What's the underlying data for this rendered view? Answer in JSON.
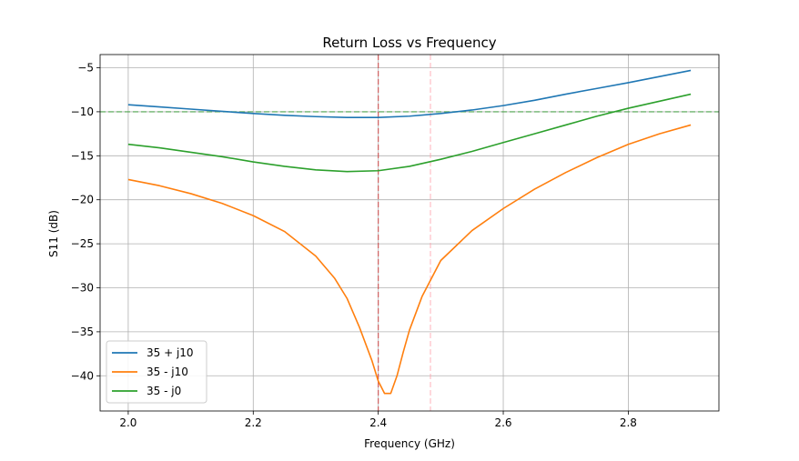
{
  "chart_data": {
    "type": "line",
    "title": "Return Loss vs Frequency",
    "xlabel": "Frequency (GHz)",
    "ylabel": "S11 (dB)",
    "xlim": [
      1.955,
      2.945
    ],
    "ylim": [
      -44,
      -3.5
    ],
    "xticks": [
      2.0,
      2.2,
      2.4,
      2.6,
      2.8
    ],
    "yticks": [
      -40,
      -35,
      -30,
      -25,
      -20,
      -15,
      -10,
      -5
    ],
    "grid": true,
    "legend_position": "lower-left",
    "series": [
      {
        "name": "35 + j10",
        "color": "#1f77b4",
        "x": [
          2.0,
          2.05,
          2.1,
          2.15,
          2.2,
          2.25,
          2.3,
          2.35,
          2.4,
          2.45,
          2.5,
          2.55,
          2.6,
          2.65,
          2.7,
          2.75,
          2.8,
          2.85,
          2.9
        ],
        "y": [
          -9.2,
          -9.45,
          -9.7,
          -9.95,
          -10.2,
          -10.4,
          -10.55,
          -10.65,
          -10.65,
          -10.5,
          -10.2,
          -9.8,
          -9.3,
          -8.7,
          -8.0,
          -7.35,
          -6.7,
          -6.0,
          -5.3
        ]
      },
      {
        "name": "35 - j10",
        "color": "#ff7f0e",
        "x": [
          2.0,
          2.05,
          2.1,
          2.15,
          2.2,
          2.25,
          2.3,
          2.33,
          2.35,
          2.37,
          2.39,
          2.4,
          2.41,
          2.42,
          2.43,
          2.44,
          2.45,
          2.47,
          2.5,
          2.55,
          2.6,
          2.65,
          2.7,
          2.75,
          2.8,
          2.85,
          2.9
        ],
        "y": [
          -17.7,
          -18.4,
          -19.3,
          -20.4,
          -21.8,
          -23.6,
          -26.4,
          -28.9,
          -31.2,
          -34.5,
          -38.3,
          -40.6,
          -42.0,
          -42.0,
          -40.0,
          -37.3,
          -34.8,
          -31.0,
          -26.9,
          -23.5,
          -21.0,
          -18.8,
          -16.9,
          -15.2,
          -13.7,
          -12.5,
          -11.5
        ]
      },
      {
        "name": "35 - j0",
        "color": "#2ca02c",
        "x": [
          2.0,
          2.05,
          2.1,
          2.15,
          2.2,
          2.25,
          2.3,
          2.35,
          2.4,
          2.45,
          2.5,
          2.55,
          2.6,
          2.65,
          2.7,
          2.75,
          2.8,
          2.85,
          2.9
        ],
        "y": [
          -13.7,
          -14.1,
          -14.6,
          -15.1,
          -15.7,
          -16.2,
          -16.6,
          -16.8,
          -16.7,
          -16.2,
          -15.4,
          -14.5,
          -13.5,
          -12.5,
          -11.5,
          -10.5,
          -9.6,
          -8.8,
          -8.0
        ]
      }
    ],
    "reference_lines": [
      {
        "orientation": "horizontal",
        "value": -10,
        "color": "#2ca02c",
        "style": "dashed"
      },
      {
        "orientation": "vertical",
        "value": 2.4,
        "color": "#d62728",
        "style": "dashed"
      },
      {
        "orientation": "vertical",
        "value": 2.4835,
        "color": "#ff9da7",
        "style": "dashed"
      }
    ]
  }
}
